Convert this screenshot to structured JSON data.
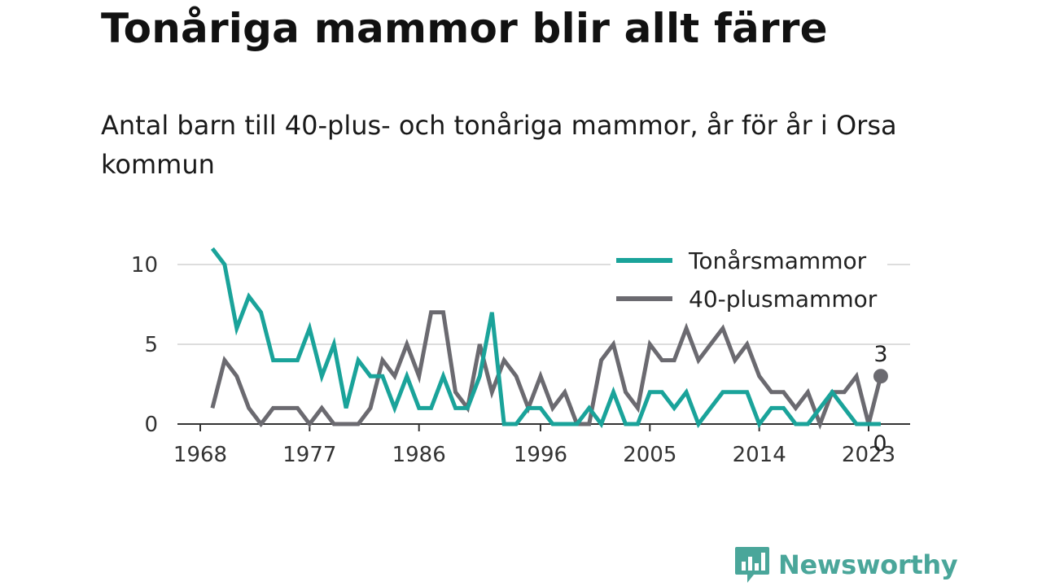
{
  "header": {
    "title": "Tonåriga mammor blir allt färre",
    "subtitle": "Antal barn till 40-plus- och tonåriga mammor, år för år i Orsa kommun"
  },
  "brand": {
    "name": "Newsworthy",
    "icon": "bar-chart-speech-bubble-icon",
    "color": "#4aa69a"
  },
  "chart_data": {
    "type": "line",
    "x_ticks": [
      1968,
      1977,
      1986,
      1996,
      2005,
      2014,
      2023
    ],
    "y_ticks": [
      0,
      5,
      10
    ],
    "xlim": [
      1968,
      2025
    ],
    "ylim": [
      0,
      11.5
    ],
    "grid": "horizontal",
    "legend_position": "top-right",
    "series": [
      {
        "name": "Tonårsmammor",
        "color": "#1aa39a",
        "x": [
          1969,
          1970,
          1971,
          1972,
          1973,
          1974,
          1975,
          1976,
          1977,
          1978,
          1979,
          1980,
          1981,
          1982,
          1983,
          1984,
          1985,
          1986,
          1987,
          1988,
          1989,
          1990,
          1991,
          1992,
          1993,
          1994,
          1995,
          1996,
          1997,
          1998,
          1999,
          2000,
          2001,
          2002,
          2003,
          2004,
          2005,
          2006,
          2007,
          2008,
          2009,
          2010,
          2011,
          2012,
          2013,
          2014,
          2015,
          2016,
          2017,
          2018,
          2019,
          2020,
          2021,
          2022,
          2023,
          2024
        ],
        "values": [
          11,
          10,
          6,
          8,
          7,
          4,
          4,
          4,
          6,
          3,
          5,
          1,
          4,
          3,
          3,
          1,
          3,
          1,
          1,
          3,
          1,
          1,
          3,
          7,
          0,
          0,
          1,
          1,
          0,
          0,
          0,
          1,
          0,
          2,
          0,
          0,
          2,
          2,
          1,
          2,
          0,
          1,
          2,
          2,
          2,
          0,
          1,
          1,
          0,
          0,
          1,
          2,
          1,
          0,
          0,
          0
        ],
        "end_label": "0"
      },
      {
        "name": "40-plusmammor",
        "color": "#6b6a70",
        "x": [
          1969,
          1970,
          1971,
          1972,
          1973,
          1974,
          1975,
          1976,
          1977,
          1978,
          1979,
          1980,
          1981,
          1982,
          1983,
          1984,
          1985,
          1986,
          1987,
          1988,
          1989,
          1990,
          1991,
          1992,
          1993,
          1994,
          1995,
          1996,
          1997,
          1998,
          1999,
          2000,
          2001,
          2002,
          2003,
          2004,
          2005,
          2006,
          2007,
          2008,
          2009,
          2010,
          2011,
          2012,
          2013,
          2014,
          2015,
          2016,
          2017,
          2018,
          2019,
          2020,
          2021,
          2022,
          2023,
          2024
        ],
        "values": [
          1,
          4,
          3,
          1,
          0,
          1,
          1,
          1,
          0,
          1,
          0,
          0,
          0,
          1,
          4,
          3,
          5,
          3,
          7,
          7,
          2,
          1,
          5,
          2,
          4,
          3,
          1,
          3,
          1,
          2,
          0,
          0,
          4,
          5,
          2,
          1,
          5,
          4,
          4,
          6,
          4,
          5,
          6,
          4,
          5,
          3,
          2,
          2,
          1,
          2,
          0,
          2,
          2,
          3,
          0,
          3
        ],
        "end_label": "3"
      }
    ]
  }
}
